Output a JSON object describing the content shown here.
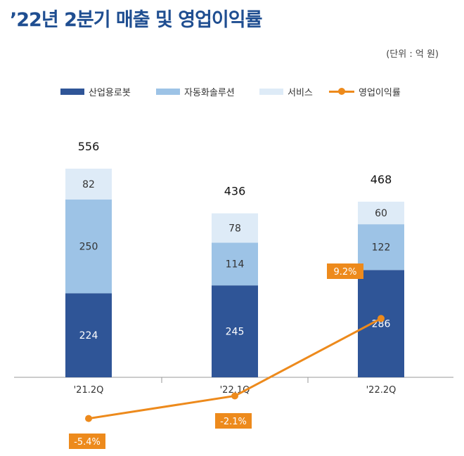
{
  "title": "’22년 2분기 매출 및 영업이익률",
  "unit_label": "(단위 : 억 원)",
  "colors": {
    "title": "#1f4e91",
    "industrial": "#2f5597",
    "automotive": "#9dc3e6",
    "service": "#deebf7",
    "margin": "#ed8a1c",
    "axis": "#999999"
  },
  "legend": [
    {
      "label": "산업용로봇",
      "kind": "bar"
    },
    {
      "label": "자동화솔루션",
      "kind": "bar"
    },
    {
      "label": "서비스",
      "kind": "bar"
    },
    {
      "label": "영업이익률",
      "kind": "line"
    }
  ],
  "chart_data": {
    "type": "bar",
    "stacked": true,
    "categories": [
      "'21.2Q",
      "'22.1Q",
      "'22.2Q"
    ],
    "series": [
      {
        "name": "산업용로봇",
        "values": [
          224,
          245,
          286
        ]
      },
      {
        "name": "자동화솔루션",
        "values": [
          250,
          114,
          122
        ]
      },
      {
        "name": "서비스",
        "values": [
          82,
          78,
          60
        ]
      }
    ],
    "totals": [
      556,
      436,
      468
    ],
    "line_series": {
      "name": "영업이익률",
      "values": [
        -5.4,
        -2.1,
        9.2
      ],
      "labels": [
        "-5.4%",
        "-2.1%",
        "9.2%"
      ]
    },
    "legend_position": "top",
    "grid": false
  }
}
